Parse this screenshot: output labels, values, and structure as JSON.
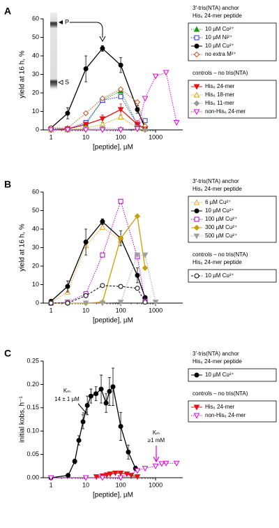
{
  "chart_data": [
    {
      "type": "line",
      "panel_label": "A",
      "y_label": "yield at 16 h, %",
      "x_label": "[peptide], µM",
      "log_x": true,
      "xlim": [
        0.6,
        6000
      ],
      "xticks": [
        1,
        10,
        100,
        1000
      ],
      "ylim": [
        0,
        60
      ],
      "yticks": [
        0,
        10,
        20,
        30,
        40,
        50,
        60
      ],
      "inset_labels": [
        "P",
        "S"
      ],
      "groups": [
        {
          "headers": [
            "3′-tris(NTA) anchor",
            "His₆ 24-mer peptide"
          ],
          "series": [
            {
              "name": "10 µM Co²⁺",
              "color": "#1a9a1a",
              "marker": "triangle-up",
              "filled": true,
              "dash": "dotted",
              "x": [
                1,
                3,
                10,
                30,
                100,
                300,
                500
              ],
              "values": [
                1,
                0.5,
                3,
                16,
                21,
                3,
                1
              ]
            },
            {
              "name": "10 µM Ni²⁺",
              "color": "#2233dd",
              "marker": "square",
              "filled": false,
              "dash": "dotted",
              "x": [
                1,
                3,
                10,
                30,
                100,
                300,
                500
              ],
              "values": [
                0.5,
                0.5,
                4,
                16,
                18,
                3,
                5
              ]
            },
            {
              "name": "10 µM Cu²⁺",
              "color": "#000000",
              "marker": "circle",
              "filled": true,
              "dash": "solid",
              "x": [
                1,
                3,
                10,
                30,
                100,
                300,
                500
              ],
              "values": [
                1,
                9,
                33,
                44,
                35,
                11,
                1
              ],
              "errors": [
                0.5,
                3,
                7,
                1.5,
                4,
                2,
                0.5
              ]
            },
            {
              "name": "no extra M²⁺",
              "color": "#c8501e",
              "marker": "diamond",
              "filled": false,
              "dash": "dotted",
              "x": [
                1,
                3,
                10,
                30,
                100,
                300,
                500
              ],
              "values": [
                1,
                1,
                9,
                17,
                22,
                15,
                2
              ]
            }
          ]
        },
        {
          "headers": [
            "controls – no tris(NTA)"
          ],
          "series": [
            {
              "name": "His₆ 24-mer",
              "color": "#e81010",
              "marker": "triangle-down",
              "filled": true,
              "dash": "solid",
              "x": [
                1,
                3,
                10,
                30,
                100,
                300,
                500
              ],
              "values": [
                0,
                0.5,
                3,
                6,
                11,
                3,
                0.5
              ],
              "errors": [
                0,
                0.5,
                1,
                2,
                3,
                2,
                0.5
              ]
            },
            {
              "name": "His₆ 18-mer",
              "color": "#d8a000",
              "marker": "triangle-up",
              "filled": false,
              "dash": "dotted",
              "x": [
                1,
                3,
                10,
                30,
                100,
                300,
                500
              ],
              "values": [
                0,
                0,
                1,
                3,
                7,
                1,
                0.5
              ]
            },
            {
              "name": "His₆ 11-mer",
              "color": "#999999",
              "marker": "diamond",
              "filled": true,
              "dash": "dotted",
              "x": [
                1,
                3,
                10,
                30,
                100,
                300,
                500
              ],
              "values": [
                0,
                0,
                0.5,
                1,
                0.5,
                0.5,
                0
              ]
            },
            {
              "name": "non-His₆ 24-mer",
              "color": "#e000e0",
              "marker": "triangle-down",
              "filled": false,
              "dash": "dotted",
              "x": [
                1,
                3,
                10,
                30,
                100,
                300,
                500,
                1000,
                2000,
                4000
              ],
              "values": [
                0,
                0,
                0,
                0,
                0,
                0.5,
                17,
                29,
                31,
                4
              ]
            }
          ]
        }
      ]
    },
    {
      "type": "line",
      "panel_label": "B",
      "y_label": "yield at 16 h, %",
      "x_label": "[peptide], µM",
      "log_x": true,
      "xlim": [
        0.6,
        6000
      ],
      "xticks": [
        1,
        10,
        100,
        1000
      ],
      "ylim": [
        0,
        60
      ],
      "yticks": [
        0,
        10,
        20,
        30,
        40,
        50,
        60
      ],
      "groups": [
        {
          "headers": [
            "3′-tris(NTA) anchor",
            "His₆ 24-mer peptide"
          ],
          "series": [
            {
              "name": "6 µM Cu²⁺",
              "color": "#f0a020",
              "marker": "triangle-up",
              "filled": false,
              "dash": "dotted",
              "x": [
                1,
                3,
                10,
                30,
                100
              ],
              "values": [
                0.5,
                6,
                31,
                41,
                34
              ]
            },
            {
              "name": "10 µM Cu²⁺",
              "color": "#000000",
              "marker": "circle",
              "filled": true,
              "dash": "solid",
              "x": [
                1,
                3,
                10,
                30,
                100,
                300,
                500
              ],
              "values": [
                1,
                9,
                33,
                44,
                35,
                15,
                3
              ],
              "errors": [
                0.5,
                3,
                7,
                1.5,
                4,
                4,
                1
              ]
            },
            {
              "name": "100 µM Cu²⁺",
              "color": "#b000d0",
              "marker": "square",
              "filled": false,
              "dash": "dotted",
              "x": [
                1,
                3,
                10,
                30,
                100,
                300,
                500
              ],
              "values": [
                0,
                0.5,
                5,
                26,
                55,
                25,
                1
              ]
            },
            {
              "name": "300 µM Cu²⁺",
              "color": "#c8a000",
              "marker": "diamond",
              "filled": true,
              "dash": "solid",
              "x": [
                1,
                3,
                10,
                30,
                100,
                300,
                500
              ],
              "values": [
                0,
                0,
                0,
                0.5,
                35,
                47,
                19
              ]
            },
            {
              "name": "500 µM Cu²⁺",
              "color": "#a0a0a0",
              "marker": "triangle-down",
              "filled": true,
              "dash": "dotted",
              "x": [
                1,
                3,
                10,
                30,
                100,
                300,
                500,
                1000
              ],
              "values": [
                0,
                0,
                0,
                0,
                0.5,
                26,
                26,
                0.5
              ]
            }
          ]
        },
        {
          "headers": [
            "controls – no tris(NTA)",
            "His₆ 24-mer peptide"
          ],
          "series": [
            {
              "name": "10 µM Cu²⁺",
              "color": "#000000",
              "marker": "circle",
              "filled": false,
              "dash": "dashed",
              "x": [
                1,
                3,
                10,
                30,
                100,
                300,
                500
              ],
              "values": [
                0,
                0,
                4,
                9.5,
                9,
                8,
                0.5
              ]
            }
          ]
        }
      ]
    },
    {
      "type": "line",
      "panel_label": "C",
      "y_label": "initial kobs, h⁻¹",
      "x_label": "[peptide], µM",
      "log_x": true,
      "xlim": [
        0.6,
        6000
      ],
      "xticks": [
        1,
        10,
        100,
        1000
      ],
      "ylim": [
        0,
        0.25
      ],
      "yticks": [
        {
          "value": 0,
          "label": "0.00"
        },
        0.05,
        {
          "value": 0.1,
          "label": "0.10"
        },
        0.15,
        {
          "value": 0.2,
          "label": "0.20"
        },
        0.25
      ],
      "annotations": [
        "Kₘ",
        "14 ± 1 µM",
        "Kₘ",
        "≥1 mM"
      ],
      "groups": [
        {
          "headers": [
            "3′-tris(NTA) anchor",
            "His₆ 24-mer peptide"
          ],
          "series": [
            {
              "name": "10 µM Cu²⁺",
              "color": "#000000",
              "marker": "circle",
              "filled": true,
              "dash": "solid",
              "x": [
                1,
                3.1,
                4.8,
                6.3,
                8.3,
                11,
                14,
                19.5,
                27.5,
                38,
                47.5,
                60,
                100,
                165,
                265
              ],
              "values": [
                0,
                0.005,
                0.035,
                0.08,
                0.12,
                0.155,
                0.175,
                0.18,
                0.19,
                0.16,
                0.185,
                0.195,
                0.11,
                0.055,
                0.02
              ],
              "errors": [
                0,
                0.002,
                0.005,
                0.01,
                0.015,
                0.02,
                0.015,
                0.015,
                0.03,
                0.02,
                0.03,
                0.04,
                0.03,
                0.015,
                0.005
              ]
            }
          ]
        },
        {
          "headers": [
            "controls – no tris(NTA)"
          ],
          "series": [
            {
              "name": "His₆ 24-mer",
              "color": "#e81010",
              "marker": "triangle-down",
              "filled": true,
              "dash": "solid",
              "x": [
                20,
                30,
                40,
                50,
                70,
                100,
                150,
                200,
                300
              ],
              "values": [
                0.002,
                0.004,
                0.006,
                0.008,
                0.01,
                0.01,
                0.008,
                0.005,
                0.002
              ]
            },
            {
              "name": "non-His₆ 24-mer",
              "color": "#e000e0",
              "marker": "triangle-down",
              "filled": false,
              "dash": "dotted",
              "x": [
                1,
                10,
                30,
                100,
                300,
                500,
                1000,
                1500,
                2000,
                4000
              ],
              "values": [
                0,
                0,
                0,
                0,
                0.015,
                0.02,
                0.025,
                0.03,
                0.031,
                0.031
              ]
            }
          ]
        }
      ]
    }
  ]
}
